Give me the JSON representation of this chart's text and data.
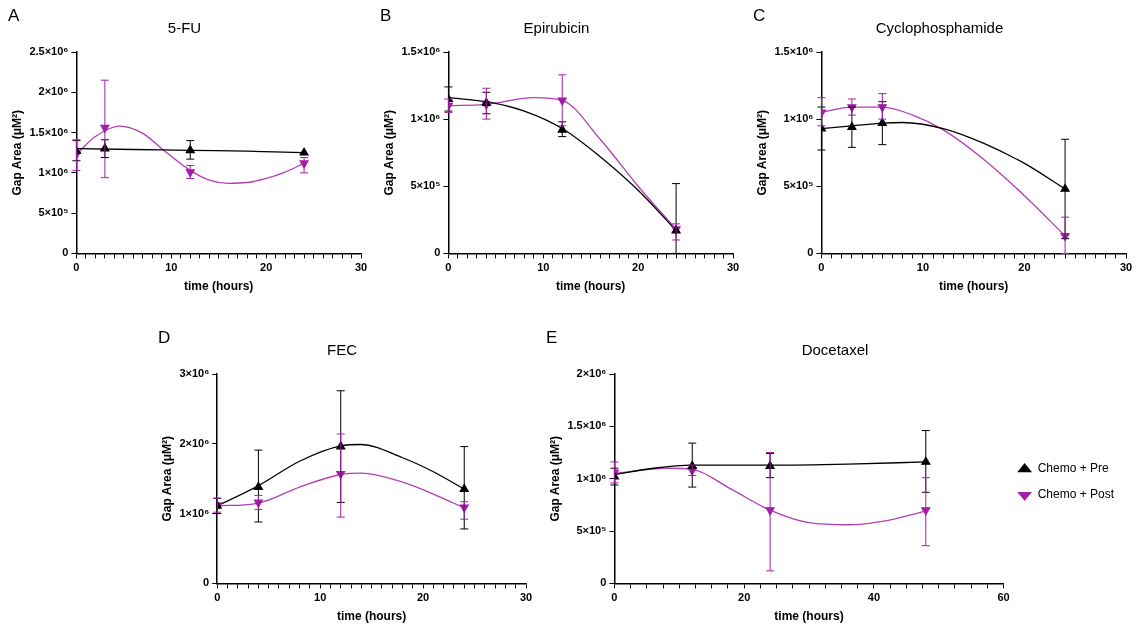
{
  "chart_data": [
    {
      "type": "scatter",
      "title": "5-FU",
      "xlabel": "time (hours)",
      "ylabel": "Gap Area (μM²)",
      "annotations": [
        "A"
      ],
      "xlim": [
        0,
        30
      ],
      "ylim": [
        0,
        2500000
      ],
      "xticks": [
        0,
        {
          "value": 1,
          "label": null
        },
        {
          "value": 2,
          "label": null
        },
        {
          "value": 3,
          "label": null
        },
        {
          "value": 4,
          "label": null
        },
        {
          "value": 5,
          "label": null
        },
        {
          "value": 6,
          "label": null
        },
        {
          "value": 7,
          "label": null
        },
        {
          "value": 8,
          "label": null
        },
        {
          "value": 9,
          "label": null
        },
        10,
        {
          "value": 11,
          "label": null
        },
        {
          "value": 12,
          "label": null
        },
        {
          "value": 13,
          "label": null
        },
        {
          "value": 14,
          "label": null
        },
        {
          "value": 15,
          "label": null
        },
        {
          "value": 16,
          "label": null
        },
        {
          "value": 17,
          "label": null
        },
        {
          "value": 18,
          "label": null
        },
        {
          "value": 19,
          "label": null
        },
        20,
        {
          "value": 21,
          "label": null
        },
        {
          "value": 22,
          "label": null
        },
        {
          "value": 23,
          "label": null
        },
        {
          "value": 24,
          "label": null
        },
        {
          "value": 25,
          "label": null
        },
        {
          "value": 26,
          "label": null
        },
        {
          "value": 27,
          "label": null
        },
        {
          "value": 28,
          "label": null
        },
        {
          "value": 29,
          "label": null
        },
        30
      ],
      "yticks": [
        {
          "value": 0,
          "label": "0"
        },
        {
          "value": 500000,
          "label": "5×10⁵"
        },
        {
          "value": 1000000,
          "label": "1×10⁶"
        },
        {
          "value": 1500000,
          "label": "1.5×10⁶"
        },
        {
          "value": 2000000,
          "label": "2×10⁶"
        },
        {
          "value": 2500000,
          "label": "2.5×10⁶"
        }
      ],
      "series": [
        {
          "type": "scatter",
          "marker": "triangle",
          "color": "#000000",
          "x": [
            0,
            3,
            12,
            24
          ],
          "values": [
            1270000,
            1300000,
            1280000,
            1250000
          ],
          "errors": [
            [
              1150000,
              1400000
            ],
            [
              1190000,
              1410000
            ],
            [
              1170000,
              1400000
            ],
            null
          ]
        },
        {
          "type": "scatter",
          "marker": "triangle",
          "color": "#a31fa8",
          "x": [
            0,
            3,
            12,
            24
          ],
          "values": [
            1230000,
            1560000,
            1010000,
            1120000
          ],
          "errors": [
            [
              1030000,
              1410000
            ],
            [
              940000,
              2150000
            ],
            [
              930000,
              1090000
            ],
            [
              1000000,
              1190000
            ]
          ]
        },
        {
          "type": "line",
          "marker": "none",
          "color": "#000000",
          "x": [
            0,
            6,
            12,
            18,
            24
          ],
          "values": [
            1300000,
            1290000,
            1280000,
            1270000,
            1250000
          ]
        },
        {
          "type": "line",
          "marker": "none",
          "color": "#b040b0",
          "x": [
            0,
            2,
            4.5,
            7,
            9,
            12,
            14,
            16,
            18,
            20,
            22,
            24
          ],
          "values": [
            1230000,
            1450000,
            1580000,
            1490000,
            1300000,
            1030000,
            910000,
            870000,
            880000,
            930000,
            1010000,
            1120000
          ]
        }
      ]
    },
    {
      "type": "scatter",
      "title": "Epirubicin",
      "xlabel": "time (hours)",
      "ylabel": "Gap Area (μM²)",
      "annotations": [
        "B"
      ],
      "xlim": [
        0,
        30
      ],
      "ylim": [
        0,
        1500000
      ],
      "xticks": [
        0,
        {
          "value": 1,
          "label": null
        },
        {
          "value": 2,
          "label": null
        },
        {
          "value": 3,
          "label": null
        },
        {
          "value": 4,
          "label": null
        },
        {
          "value": 5,
          "label": null
        },
        {
          "value": 6,
          "label": null
        },
        {
          "value": 7,
          "label": null
        },
        {
          "value": 8,
          "label": null
        },
        {
          "value": 9,
          "label": null
        },
        10,
        {
          "value": 11,
          "label": null
        },
        {
          "value": 12,
          "label": null
        },
        {
          "value": 13,
          "label": null
        },
        {
          "value": 14,
          "label": null
        },
        {
          "value": 15,
          "label": null
        },
        {
          "value": 16,
          "label": null
        },
        {
          "value": 17,
          "label": null
        },
        {
          "value": 18,
          "label": null
        },
        {
          "value": 19,
          "label": null
        },
        20,
        {
          "value": 21,
          "label": null
        },
        {
          "value": 22,
          "label": null
        },
        {
          "value": 23,
          "label": null
        },
        {
          "value": 24,
          "label": null
        },
        {
          "value": 25,
          "label": null
        },
        {
          "value": 26,
          "label": null
        },
        {
          "value": 27,
          "label": null
        },
        {
          "value": 28,
          "label": null
        },
        {
          "value": 29,
          "label": null
        },
        30
      ],
      "yticks": [
        {
          "value": 0,
          "label": "0"
        },
        {
          "value": 500000,
          "label": "5×10⁵"
        },
        {
          "value": 1000000,
          "label": "1×10⁶"
        },
        {
          "value": 1500000,
          "label": "1.5×10⁶"
        }
      ],
      "series": [
        {
          "type": "scatter",
          "marker": "triangle",
          "color": "#000000",
          "x": [
            0,
            4,
            12,
            24
          ],
          "values": [
            1150000,
            1120000,
            920000,
            170000
          ],
          "errors": [
            [
              1060000,
              1240000
            ],
            [
              1040000,
              1200000
            ],
            [
              870000,
              980000
            ],
            [
              0,
              520000
            ]
          ]
        },
        {
          "type": "scatter",
          "marker": "triangle",
          "color": "#a31fa8",
          "x": [
            0,
            4,
            12,
            24
          ],
          "values": [
            1100000,
            1110000,
            1140000,
            180000
          ],
          "errors": [
            [
              1050000,
              1150000
            ],
            [
              1000000,
              1230000
            ],
            [
              950000,
              1330000
            ],
            [
              100000,
              220000
            ]
          ]
        },
        {
          "type": "line",
          "marker": "none",
          "color": "#000000",
          "x": [
            0,
            4,
            8,
            12,
            16,
            20,
            24
          ],
          "values": [
            1160000,
            1130000,
            1060000,
            930000,
            720000,
            470000,
            170000
          ]
        },
        {
          "type": "line",
          "marker": "none",
          "color": "#b040b0",
          "x": [
            0,
            4,
            9,
            12,
            16,
            20,
            24
          ],
          "values": [
            1100000,
            1110000,
            1160000,
            1140000,
            850000,
            500000,
            180000
          ]
        }
      ]
    },
    {
      "type": "scatter",
      "title": "Cyclophosphamide",
      "xlabel": "time (hours)",
      "ylabel": "Gap Area (μM²)",
      "annotations": [
        "C"
      ],
      "xlim": [
        0,
        30
      ],
      "ylim": [
        0,
        1500000
      ],
      "xticks": [
        0,
        {
          "value": 1,
          "label": null
        },
        {
          "value": 2,
          "label": null
        },
        {
          "value": 3,
          "label": null
        },
        {
          "value": 4,
          "label": null
        },
        {
          "value": 5,
          "label": null
        },
        {
          "value": 6,
          "label": null
        },
        {
          "value": 7,
          "label": null
        },
        {
          "value": 8,
          "label": null
        },
        {
          "value": 9,
          "label": null
        },
        10,
        {
          "value": 11,
          "label": null
        },
        {
          "value": 12,
          "label": null
        },
        {
          "value": 13,
          "label": null
        },
        {
          "value": 14,
          "label": null
        },
        {
          "value": 15,
          "label": null
        },
        {
          "value": 16,
          "label": null
        },
        {
          "value": 17,
          "label": null
        },
        {
          "value": 18,
          "label": null
        },
        {
          "value": 19,
          "label": null
        },
        20,
        {
          "value": 21,
          "label": null
        },
        {
          "value": 22,
          "label": null
        },
        {
          "value": 23,
          "label": null
        },
        {
          "value": 24,
          "label": null
        },
        {
          "value": 25,
          "label": null
        },
        {
          "value": 26,
          "label": null
        },
        {
          "value": 27,
          "label": null
        },
        {
          "value": 28,
          "label": null
        },
        {
          "value": 29,
          "label": null
        },
        30
      ],
      "yticks": [
        {
          "value": 0,
          "label": "0"
        },
        {
          "value": 500000,
          "label": "5×10⁵"
        },
        {
          "value": 1000000,
          "label": "1×10⁶"
        },
        {
          "value": 1500000,
          "label": "1.5×10⁶"
        }
      ],
      "series": [
        {
          "type": "scatter",
          "marker": "triangle",
          "color": "#000000",
          "x": [
            0,
            3,
            6,
            24
          ],
          "values": [
            930000,
            940000,
            970000,
            480000
          ],
          "errors": [
            [
              770000,
              1090000
            ],
            [
              790000,
              1090000
            ],
            [
              810000,
              1130000
            ],
            [
              110000,
              850000
            ]
          ]
        },
        {
          "type": "scatter",
          "marker": "triangle",
          "color": "#a31fa8",
          "x": [
            0,
            3,
            6,
            24
          ],
          "values": [
            1050000,
            1090000,
            1090000,
            130000
          ],
          "errors": [
            [
              950000,
              1160000
            ],
            [
              1030000,
              1150000
            ],
            [
              1000000,
              1190000
            ],
            [
              0,
              270000
            ]
          ]
        },
        {
          "type": "line",
          "marker": "none",
          "color": "#000000",
          "x": [
            0,
            3,
            6,
            8,
            12,
            16,
            20,
            24
          ],
          "values": [
            930000,
            950000,
            970000,
            975000,
            930000,
            820000,
            670000,
            480000
          ]
        },
        {
          "type": "line",
          "marker": "none",
          "color": "#b040b0",
          "x": [
            0,
            3,
            6,
            9,
            12,
            16,
            20,
            24
          ],
          "values": [
            1050000,
            1090000,
            1090000,
            1030000,
            920000,
            700000,
            430000,
            130000
          ]
        }
      ]
    },
    {
      "type": "scatter",
      "title": "FEC",
      "xlabel": "time (hours)",
      "ylabel": "Gap Area (μM²)",
      "annotations": [
        "D"
      ],
      "xlim": [
        0,
        30
      ],
      "ylim": [
        0,
        3000000
      ],
      "xticks": [
        0,
        {
          "value": 1,
          "label": null
        },
        {
          "value": 2,
          "label": null
        },
        {
          "value": 3,
          "label": null
        },
        {
          "value": 4,
          "label": null
        },
        {
          "value": 5,
          "label": null
        },
        {
          "value": 6,
          "label": null
        },
        {
          "value": 7,
          "label": null
        },
        {
          "value": 8,
          "label": null
        },
        {
          "value": 9,
          "label": null
        },
        10,
        {
          "value": 11,
          "label": null
        },
        {
          "value": 12,
          "label": null
        },
        {
          "value": 13,
          "label": null
        },
        {
          "value": 14,
          "label": null
        },
        {
          "value": 15,
          "label": null
        },
        {
          "value": 16,
          "label": null
        },
        {
          "value": 17,
          "label": null
        },
        {
          "value": 18,
          "label": null
        },
        {
          "value": 19,
          "label": null
        },
        20,
        {
          "value": 21,
          "label": null
        },
        {
          "value": 22,
          "label": null
        },
        {
          "value": 23,
          "label": null
        },
        {
          "value": 24,
          "label": null
        },
        {
          "value": 25,
          "label": null
        },
        {
          "value": 26,
          "label": null
        },
        {
          "value": 27,
          "label": null
        },
        {
          "value": 28,
          "label": null
        },
        {
          "value": 29,
          "label": null
        },
        30
      ],
      "yticks": [
        {
          "value": 0,
          "label": "0"
        },
        {
          "value": 1000000,
          "label": "1×10⁶"
        },
        {
          "value": 2000000,
          "label": "2×10⁶"
        },
        {
          "value": 3000000,
          "label": "3×10⁶"
        }
      ],
      "series": [
        {
          "type": "scatter",
          "marker": "triangle",
          "color": "#000000",
          "x": [
            0,
            4,
            12,
            24
          ],
          "values": [
            1110000,
            1380000,
            1960000,
            1350000
          ],
          "errors": [
            [
              1000000,
              1220000
            ],
            [
              880000,
              1910000
            ],
            [
              1160000,
              2760000
            ],
            [
              780000,
              1960000
            ]
          ]
        },
        {
          "type": "scatter",
          "marker": "triangle",
          "color": "#a31fa8",
          "x": [
            0,
            4,
            12,
            24
          ],
          "values": [
            1120000,
            1160000,
            1570000,
            1090000
          ],
          "errors": [
            [
              1020000,
              1220000
            ],
            [
              1060000,
              1260000
            ],
            [
              950000,
              2140000
            ],
            [
              920000,
              1170000
            ]
          ]
        },
        {
          "type": "line",
          "marker": "none",
          "color": "#000000",
          "x": [
            0,
            4,
            8,
            12,
            14,
            18,
            21,
            24
          ],
          "values": [
            1110000,
            1400000,
            1750000,
            1970000,
            1990000,
            1800000,
            1600000,
            1350000
          ]
        },
        {
          "type": "line",
          "marker": "none",
          "color": "#b040b0",
          "x": [
            0,
            4,
            8,
            12,
            14,
            18,
            21,
            24
          ],
          "values": [
            1110000,
            1150000,
            1380000,
            1560000,
            1580000,
            1450000,
            1280000,
            1080000
          ]
        }
      ]
    },
    {
      "type": "scatter",
      "title": "Docetaxel",
      "xlabel": "time (hours)",
      "ylabel": "Gap Area (μM²)",
      "annotations": [
        "E"
      ],
      "legend": "right",
      "xlim": [
        0,
        60
      ],
      "ylim": [
        0,
        2000000
      ],
      "xticks": [
        0,
        {
          "value": 2.5,
          "label": null
        },
        {
          "value": 5,
          "label": null
        },
        {
          "value": 7.5,
          "label": null
        },
        {
          "value": 10,
          "label": null
        },
        {
          "value": 12.5,
          "label": null
        },
        {
          "value": 15,
          "label": null
        },
        {
          "value": 17.5,
          "label": null
        },
        20,
        {
          "value": 22.5,
          "label": null
        },
        {
          "value": 25,
          "label": null
        },
        {
          "value": 27.5,
          "label": null
        },
        {
          "value": 30,
          "label": null
        },
        {
          "value": 32.5,
          "label": null
        },
        {
          "value": 35,
          "label": null
        },
        {
          "value": 37.5,
          "label": null
        },
        40,
        {
          "value": 42.5,
          "label": null
        },
        {
          "value": 45,
          "label": null
        },
        {
          "value": 47.5,
          "label": null
        },
        {
          "value": 50,
          "label": null
        },
        {
          "value": 52.5,
          "label": null
        },
        {
          "value": 55,
          "label": null
        },
        {
          "value": 57.5,
          "label": null
        },
        60
      ],
      "yticks": [
        {
          "value": 0,
          "label": "0"
        },
        {
          "value": 500000,
          "label": "5×10⁵"
        },
        {
          "value": 1000000,
          "label": "1×10⁶"
        },
        {
          "value": 1500000,
          "label": "1.5×10⁶"
        },
        {
          "value": 2000000,
          "label": "2×10⁶"
        }
      ],
      "series": [
        {
          "name": "Chemo + Pre",
          "type": "scatter",
          "marker": "triangle",
          "color": "#000000",
          "x": [
            0,
            12,
            24,
            48
          ],
          "values": [
            1020000,
            1120000,
            1120000,
            1160000
          ],
          "errors": [
            [
              940000,
              1100000
            ],
            [
              920000,
              1340000
            ],
            [
              1010000,
              1240000
            ],
            [
              870000,
              1460000
            ]
          ]
        },
        {
          "name": "Chemo + Post",
          "type": "scatter",
          "marker": "triangle",
          "color": "#a31fa8",
          "x": [
            0,
            12,
            24,
            48
          ],
          "values": [
            1060000,
            1080000,
            700000,
            700000
          ],
          "errors": [
            [
              960000,
              1160000
            ],
            [
              1030000,
              1130000
            ],
            [
              120000,
              1250000
            ],
            [
              360000,
              1010000
            ]
          ]
        },
        {
          "type": "line",
          "marker": "none",
          "color": "#000000",
          "x": [
            0,
            6,
            12,
            24,
            36,
            48
          ],
          "values": [
            1040000,
            1100000,
            1130000,
            1130000,
            1140000,
            1160000
          ]
        },
        {
          "type": "line",
          "marker": "none",
          "color": "#b040b0",
          "x": [
            0,
            8,
            12,
            18,
            24,
            30,
            36,
            42,
            48
          ],
          "values": [
            1050000,
            1100000,
            1090000,
            900000,
            700000,
            580000,
            560000,
            600000,
            690000
          ]
        }
      ]
    }
  ]
}
